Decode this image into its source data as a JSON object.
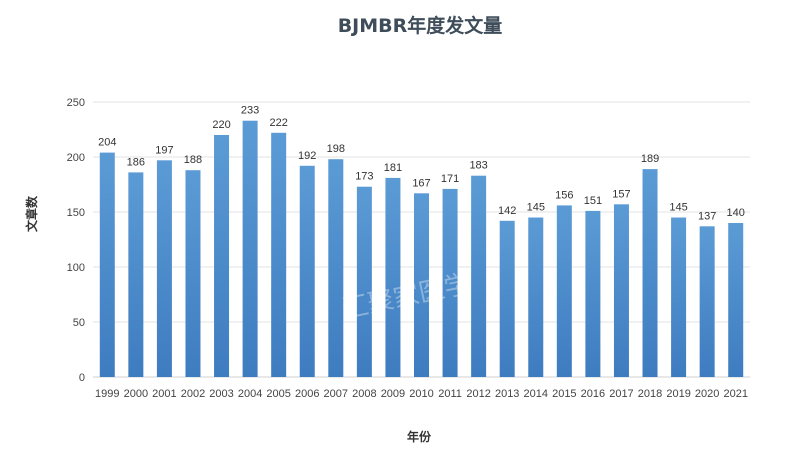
{
  "chart_data": {
    "type": "bar",
    "title": "BJMBR年度发文量",
    "xlabel": "年份",
    "ylabel": "文章数",
    "ylim": [
      0,
      250
    ],
    "yticks": [
      0,
      50,
      100,
      150,
      200,
      250
    ],
    "grid": true,
    "legend": "none",
    "bar_color": "#5b9bd5",
    "bar_color_dark": "#3e7cc0",
    "categories": [
      "1999",
      "2000",
      "2001",
      "2002",
      "2003",
      "2004",
      "2005",
      "2006",
      "2007",
      "2008",
      "2009",
      "2010",
      "2011",
      "2012",
      "2013",
      "2014",
      "2015",
      "2016",
      "2017",
      "2018",
      "2019",
      "2020",
      "2021"
    ],
    "values": [
      204,
      186,
      197,
      188,
      220,
      233,
      222,
      192,
      198,
      173,
      181,
      167,
      171,
      183,
      142,
      145,
      156,
      151,
      157,
      189,
      145,
      137,
      140
    ],
    "watermark": "汇聚家医学"
  }
}
